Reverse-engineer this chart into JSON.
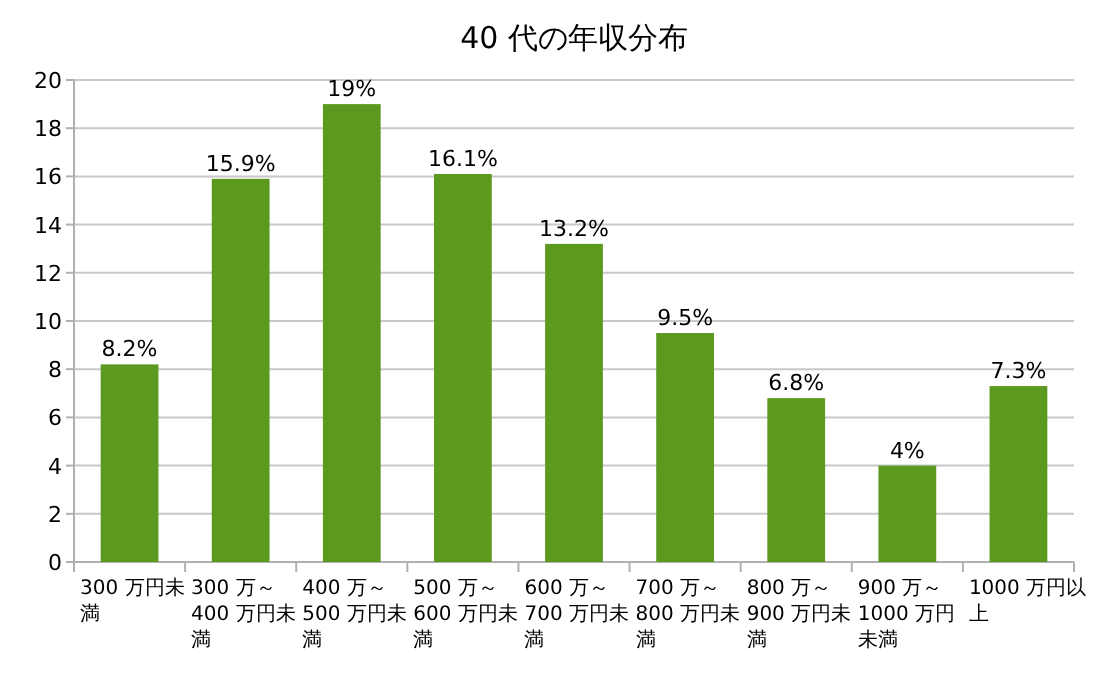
{
  "chart_data": {
    "type": "bar",
    "title": "40 代の年収分布",
    "categories": [
      "300 万円未満",
      "300 万～400 万円未満",
      "400 万～500 万円未満",
      "500 万～600 万円未満",
      "600 万～700 万円未満",
      "700 万～800 万円未満",
      "800 万～900 万円未満",
      "900 万～1000 万円未満",
      "1000 万円以上"
    ],
    "values": [
      8.2,
      15.9,
      19,
      16.1,
      13.2,
      9.5,
      6.8,
      4,
      7.3
    ],
    "value_labels": [
      "8.2%",
      "15.9%",
      "19%",
      "16.1%",
      "13.2%",
      "9.5%",
      "6.8%",
      "4%",
      "7.3%"
    ],
    "color": "#5b9a1f",
    "ylim": [
      0,
      20
    ],
    "yticks": [
      0,
      2,
      4,
      6,
      8,
      10,
      12,
      14,
      16,
      18,
      20
    ],
    "grid": "y"
  }
}
